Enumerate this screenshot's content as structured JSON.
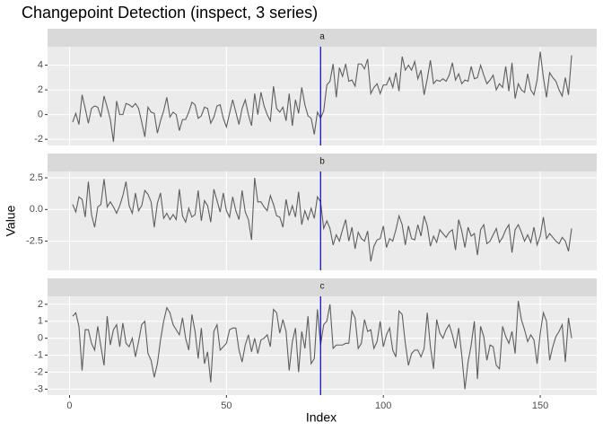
{
  "chart_data": {
    "type": "line",
    "title": "Changepoint Detection (inspect, 3 series)",
    "x_label": "Index",
    "y_label": "Value",
    "x": [
      1,
      2,
      3,
      4,
      5,
      6,
      7,
      8,
      9,
      10,
      11,
      12,
      13,
      14,
      15,
      16,
      17,
      18,
      19,
      20,
      21,
      22,
      23,
      24,
      25,
      26,
      27,
      28,
      29,
      30,
      31,
      32,
      33,
      34,
      35,
      36,
      37,
      38,
      39,
      40,
      41,
      42,
      43,
      44,
      45,
      46,
      47,
      48,
      49,
      50,
      51,
      52,
      53,
      54,
      55,
      56,
      57,
      58,
      59,
      60,
      61,
      62,
      63,
      64,
      65,
      66,
      67,
      68,
      69,
      70,
      71,
      72,
      73,
      74,
      75,
      76,
      77,
      78,
      79,
      80,
      81,
      82,
      83,
      84,
      85,
      86,
      87,
      88,
      89,
      90,
      91,
      92,
      93,
      94,
      95,
      96,
      97,
      98,
      99,
      100,
      101,
      102,
      103,
      104,
      105,
      106,
      107,
      108,
      109,
      110,
      111,
      112,
      113,
      114,
      115,
      116,
      117,
      118,
      119,
      120,
      121,
      122,
      123,
      124,
      125,
      126,
      127,
      128,
      129,
      130,
      131,
      132,
      133,
      134,
      135,
      136,
      137,
      138,
      139,
      140,
      141,
      142,
      143,
      144,
      145,
      146,
      147,
      148,
      149,
      150,
      151,
      152,
      153,
      154,
      155,
      156,
      157,
      158,
      159,
      160
    ],
    "xlim": [
      -7,
      168
    ],
    "xticks": [
      0,
      50,
      100,
      150
    ],
    "color": "#5e5e5e",
    "changepoint": 80,
    "changepoint_color": "#0000cc",
    "grid": true,
    "facets": [
      {
        "name": "a",
        "ylim": [
          -2.5,
          5.5
        ],
        "yticks": [
          -2,
          0,
          2,
          4
        ],
        "values": [
          -0.6,
          0.1,
          -0.8,
          1.6,
          0.5,
          -0.7,
          0.5,
          0.7,
          0.6,
          -0.2,
          1.5,
          0.6,
          -0.4,
          -2.2,
          1.1,
          0.0,
          0.0,
          0.9,
          0.8,
          0.6,
          0.9,
          0.5,
          -0.6,
          -1.8,
          0.6,
          0.2,
          0.1,
          -1.5,
          -0.5,
          0.3,
          1.4,
          -0.2,
          0.2,
          0.0,
          -1.3,
          -0.4,
          -0.4,
          0.2,
          1.0,
          0.8,
          -0.3,
          -0.1,
          0.6,
          0.5,
          -0.7,
          -0.2,
          0.7,
          0.8,
          -0.3,
          -1.0,
          0.1,
          1.2,
          0.2,
          -0.8,
          0.5,
          1.2,
          0.0,
          -0.9,
          1.7,
          0.0,
          1.8,
          0.7,
          0.0,
          -0.5,
          2.3,
          0.5,
          0.2,
          0.6,
          -0.5,
          1.7,
          -0.9,
          1.2,
          0.1,
          2.2,
          0.8,
          -0.1,
          -0.3,
          -1.6,
          0.2,
          -0.3,
          0.3,
          2.4,
          2.7,
          4.1,
          1.4,
          3.8,
          3.1,
          4.1,
          2.7,
          2.8,
          2.3,
          4.1,
          4.1,
          3.7,
          4.5,
          1.7,
          2.2,
          2.5,
          1.7,
          2.4,
          2.4,
          3.0,
          2.2,
          3.4,
          1.9,
          4.7,
          3.6,
          4.0,
          3.6,
          4.3,
          2.9,
          3.6,
          1.6,
          2.9,
          4.4,
          2.5,
          2.8,
          2.7,
          2.9,
          2.7,
          3.2,
          4.2,
          2.8,
          3.3,
          2.5,
          2.8,
          2.7,
          3.9,
          2.9,
          3.0,
          4.0,
          3.2,
          2.5,
          2.8,
          3.2,
          2.0,
          2.5,
          2.2,
          3.9,
          1.9,
          4.2,
          1.3,
          2.5,
          2.0,
          1.8,
          3.3,
          2.0,
          1.6,
          2.8,
          5.1,
          3.0,
          1.4,
          3.4,
          3.0,
          2.7,
          2.0,
          1.5,
          3.0,
          1.6,
          4.8
        ]
      },
      {
        "name": "b",
        "ylim": [
          -4.8,
          3.0
        ],
        "yticks": [
          -2.5,
          {
            "value": 0,
            "label": "0.0"
          },
          2.5
        ],
        "values": [
          0.4,
          -0.2,
          1.0,
          0.8,
          -0.6,
          2.2,
          -0.4,
          -1.4,
          0.2,
          0.4,
          2.4,
          0.2,
          0.6,
          0.2,
          -0.3,
          0.3,
          1.1,
          2.2,
          0.3,
          -0.3,
          1.3,
          -0.1,
          0.3,
          1.5,
          1.2,
          0.6,
          -1.4,
          0.5,
          1.3,
          -0.7,
          -0.3,
          -0.8,
          -0.4,
          -0.8,
          1.6,
          -0.5,
          -1.0,
          0.1,
          -0.6,
          -0.4,
          1.5,
          -0.9,
          0.7,
          0.3,
          -1.0,
          1.6,
          0.7,
          -0.2,
          1.3,
          -0.1,
          -0.6,
          1.0,
          -0.1,
          -0.8,
          1.5,
          -0.2,
          -0.8,
          -2.4,
          2.5,
          0.6,
          0.6,
          0.2,
          -0.1,
          1.1,
          0.4,
          -0.5,
          -0.6,
          -1.4,
          0.8,
          -0.5,
          0.3,
          -0.6,
          1.4,
          -1.2,
          -0.1,
          -0.8,
          0.1,
          -0.7,
          1.0,
          0.6,
          -1.5,
          -0.9,
          -1.5,
          -2.8,
          -2.0,
          -2.5,
          -1.6,
          -0.8,
          -2.5,
          -1.4,
          -3.1,
          -1.8,
          -2.3,
          -2.5,
          -1.7,
          -4.1,
          -2.9,
          -2.4,
          -2.3,
          -1.3,
          -3.0,
          -2.3,
          -2.5,
          -1.6,
          -0.5,
          -1.2,
          -2.8,
          -1.3,
          -2.3,
          -2.4,
          -1.2,
          -2.1,
          -0.5,
          -1.3,
          -2.9,
          -2.1,
          -2.6,
          -1.6,
          -1.9,
          -2.2,
          -1.8,
          -1.6,
          -3.2,
          -0.8,
          -1.7,
          -3.0,
          -1.4,
          -2.1,
          -1.9,
          -3.6,
          -1.6,
          -1.2,
          -2.7,
          -2.5,
          -2.0,
          -1.5,
          -2.6,
          -2.2,
          -1.6,
          -1.2,
          -3.4,
          -1.6,
          -1.2,
          -1.8,
          -2.5,
          -2.0,
          -2.6,
          -1.4,
          -2.8,
          -2.1,
          -0.6,
          -2.3,
          -1.9,
          -2.2,
          -2.5,
          -2.7,
          -2.2,
          -2.5,
          -3.3,
          -1.5
        ]
      },
      {
        "name": "c",
        "ylim": [
          -3.35,
          2.47
        ],
        "yticks": [
          -3,
          -2,
          -1,
          0,
          1,
          2
        ],
        "values": [
          1.3,
          1.5,
          0.7,
          -1.9,
          0.5,
          0.5,
          -0.3,
          -0.7,
          0.7,
          -0.5,
          -1.6,
          1.3,
          -0.4,
          0.5,
          0.8,
          -0.5,
          0.9,
          -0.3,
          -0.5,
          0.0,
          -1.1,
          -0.2,
          0.8,
          1.0,
          -0.9,
          -1.3,
          -2.3,
          -1.5,
          -0.1,
          1.0,
          1.8,
          1.5,
          0.8,
          0.5,
          0.2,
          1.2,
          0.0,
          -0.7,
          1.4,
          0.4,
          -1.2,
          0.6,
          -1.5,
          -0.8,
          -2.6,
          0.4,
          0.8,
          -0.7,
          -0.5,
          -0.3,
          0.5,
          0.6,
          0.6,
          -0.7,
          -1.4,
          -0.4,
          0.2,
          -0.8,
          0.0,
          -0.9,
          -0.1,
          0.0,
          0.2,
          -0.5,
          1.7,
          1.5,
          0.3,
          1.1,
          0.4,
          -1.9,
          -0.2,
          0.6,
          -2.0,
          0.4,
          -0.6,
          1.3,
          -1.5,
          -1.2,
          1.7,
          -0.4,
          0.8,
          1.0,
          2.0,
          -0.6,
          -0.4,
          -0.4,
          -0.4,
          -0.3,
          -0.3,
          1.6,
          1.2,
          -0.6,
          -0.3,
          1.1,
          0.4,
          0.5,
          -0.6,
          -0.2,
          1.0,
          -0.5,
          0.2,
          0.6,
          -0.7,
          -1.1,
          1.6,
          1.4,
          -0.3,
          -1.6,
          -0.9,
          -0.7,
          -0.7,
          -1.1,
          -0.6,
          1.5,
          -0.5,
          -1.8,
          1.1,
          0.3,
          0.0,
          0.5,
          0.8,
          0.2,
          -0.6,
          0.6,
          -1.0,
          -3.0,
          -1.4,
          -0.4,
          1.0,
          -2.4,
          0.7,
          0.1,
          -1.3,
          -0.4,
          -0.5,
          -1.6,
          -1.8,
          0.7,
          0.1,
          -0.3,
          0.4,
          -0.9,
          2.2,
          1.1,
          0.5,
          -0.2,
          0.2,
          -0.1,
          -1.5,
          0.3,
          1.5,
          1.0,
          -1.3,
          -0.5,
          0.1,
          0.4,
          0.8,
          -1.4,
          1.2,
          0.0
        ]
      }
    ]
  }
}
